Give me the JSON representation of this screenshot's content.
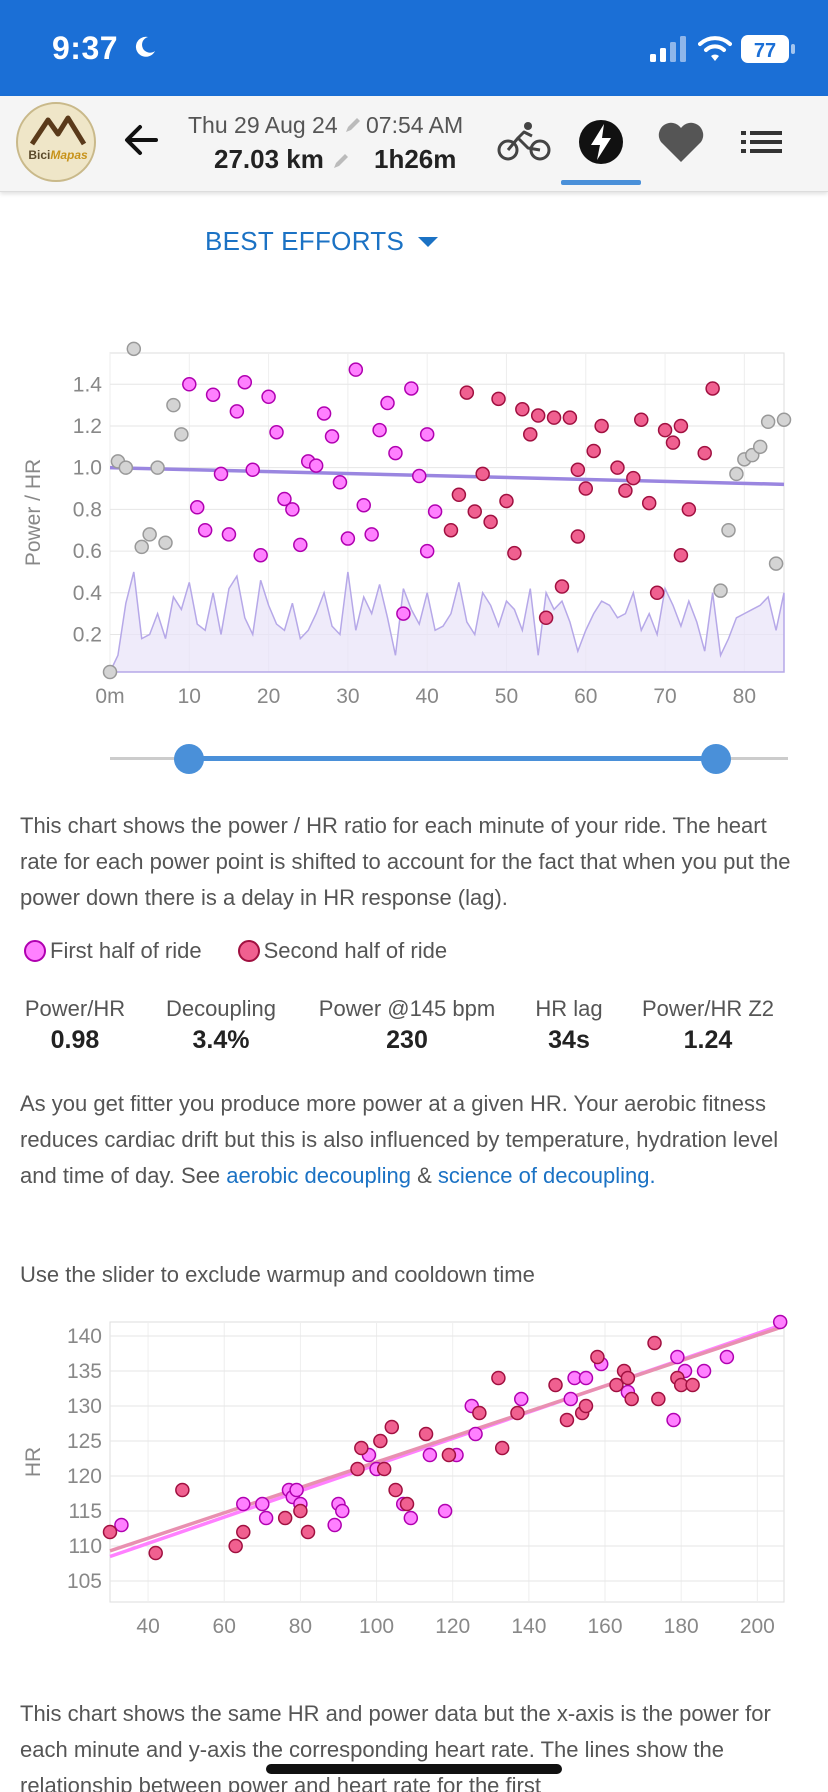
{
  "status_bar": {
    "time": "9:37",
    "battery": "77"
  },
  "header": {
    "logo_text_a": "Bici",
    "logo_text_b": "Mapas",
    "date": "Thu 29 Aug 24",
    "time": "07:54 AM",
    "distance": "27.03 km",
    "duration": "1h26m",
    "tabs": [
      "bike-icon",
      "power-icon",
      "heart-icon",
      "list-icon"
    ],
    "active_tab": "power"
  },
  "best_efforts": {
    "label": "BEST EFFORTS"
  },
  "chart1_text": {
    "ylabel": "Power / HR",
    "yticks": [
      "1.4",
      "1.2",
      "1.0",
      "0.8",
      "0.6",
      "0.4",
      "0.2"
    ],
    "xticks": [
      "0m",
      "10",
      "20",
      "30",
      "40",
      "50",
      "60",
      "70",
      "80"
    ]
  },
  "slider": {
    "min": 0,
    "max": 85,
    "low": 10,
    "high": 76
  },
  "text": {
    "chart1_desc": "This chart shows the power / HR ratio for each minute of your ride. The heart rate for each power point is shifted to account for the fact that when you put the power down there is a delay in HR response (lag).",
    "fitness_a": "As you get fitter you produce more power at a given HR. Your aerobic fitness reduces cardiac drift but this is also influenced by temperature, hydration level and time of day. See ",
    "link_aerobic": "aerobic decoupling",
    "amp": " & ",
    "link_science": "science of decoupling",
    "period": ".",
    "slider_hint": "Use the slider to exclude warmup and cooldown time",
    "chart2_desc": "This chart shows the same HR and power data but the x-axis is the power for each minute and y-axis the corresponding heart rate. The lines show the relationship between power and heart rate for the first"
  },
  "legend": {
    "first": "First half of ride",
    "second": "Second half of ride"
  },
  "stats": [
    {
      "label": "Power/HR",
      "value": "0.98"
    },
    {
      "label": "Decoupling",
      "value": "3.4%"
    },
    {
      "label": "Power @145 bpm",
      "value": "230"
    },
    {
      "label": "HR lag",
      "value": "34s"
    },
    {
      "label": "Power/HR Z2",
      "value": "1.24"
    }
  ],
  "colors": {
    "first_half": "#ff44ff",
    "second_half": "#e8306a",
    "excluded": "#bbbbbb",
    "trend": "#9a86e0",
    "accent": "#1b6fd6"
  },
  "chart_data": [
    {
      "type": "scatter",
      "xlabel": "",
      "ylabel": "Power / HR",
      "xlim": [
        0,
        85
      ],
      "ylim": [
        0.02,
        1.55
      ],
      "x_ticks": [
        0,
        10,
        20,
        30,
        40,
        50,
        60,
        70,
        80
      ],
      "y_ticks": [
        0.2,
        0.4,
        0.6,
        0.8,
        1.0,
        1.2,
        1.4
      ],
      "grid": true,
      "trend_line": [
        [
          0,
          1.0
        ],
        [
          85,
          0.92
        ]
      ],
      "background_area": {
        "x": [
          0,
          1,
          2,
          3,
          4,
          5,
          6,
          7,
          8,
          9,
          10,
          11,
          12,
          13,
          14,
          15,
          16,
          17,
          18,
          19,
          20,
          21,
          22,
          23,
          24,
          25,
          26,
          27,
          28,
          29,
          30,
          31,
          32,
          33,
          34,
          35,
          36,
          37,
          38,
          39,
          40,
          41,
          42,
          43,
          44,
          45,
          46,
          47,
          48,
          49,
          50,
          51,
          52,
          53,
          54,
          55,
          56,
          57,
          58,
          59,
          60,
          61,
          62,
          63,
          64,
          65,
          66,
          67,
          68,
          69,
          70,
          71,
          72,
          73,
          74,
          75,
          76,
          77,
          78,
          79,
          80,
          81,
          82,
          83,
          84,
          85
        ],
        "y": [
          0.02,
          0.1,
          0.35,
          0.5,
          0.18,
          0.2,
          0.3,
          0.18,
          0.38,
          0.32,
          0.45,
          0.25,
          0.22,
          0.4,
          0.2,
          0.42,
          0.48,
          0.28,
          0.2,
          0.46,
          0.34,
          0.25,
          0.22,
          0.35,
          0.18,
          0.22,
          0.3,
          0.4,
          0.24,
          0.2,
          0.5,
          0.22,
          0.38,
          0.3,
          0.44,
          0.28,
          0.1,
          0.42,
          0.32,
          0.25,
          0.4,
          0.22,
          0.24,
          0.3,
          0.45,
          0.26,
          0.2,
          0.4,
          0.34,
          0.24,
          0.36,
          0.32,
          0.22,
          0.42,
          0.1,
          0.4,
          0.32,
          0.36,
          0.26,
          0.12,
          0.22,
          0.3,
          0.36,
          0.34,
          0.28,
          0.3,
          0.4,
          0.22,
          0.3,
          0.2,
          0.42,
          0.34,
          0.24,
          0.36,
          0.26,
          0.12,
          0.4,
          0.1,
          0.18,
          0.28,
          0.3,
          0.32,
          0.34,
          0.38,
          0.22,
          0.4
        ]
      },
      "series": [
        {
          "name": "First half of ride",
          "points": [
            [
              10,
              1.4
            ],
            [
              13,
              1.35
            ],
            [
              17,
              1.41
            ],
            [
              20,
              1.34
            ],
            [
              16,
              1.27
            ],
            [
              27,
              1.26
            ],
            [
              31,
              1.47
            ],
            [
              35,
              1.31
            ],
            [
              38,
              1.38
            ],
            [
              21,
              1.17
            ],
            [
              28,
              1.15
            ],
            [
              34,
              1.18
            ],
            [
              40,
              1.16
            ],
            [
              36,
              1.07
            ],
            [
              18,
              0.99
            ],
            [
              14,
              0.97
            ],
            [
              25,
              1.03
            ],
            [
              26,
              1.01
            ],
            [
              29,
              0.93
            ],
            [
              39,
              0.96
            ],
            [
              11,
              0.81
            ],
            [
              22,
              0.85
            ],
            [
              23,
              0.8
            ],
            [
              32,
              0.82
            ],
            [
              41,
              0.79
            ],
            [
              12,
              0.7
            ],
            [
              15,
              0.68
            ],
            [
              30,
              0.66
            ],
            [
              33,
              0.68
            ],
            [
              19,
              0.58
            ],
            [
              24,
              0.63
            ],
            [
              40,
              0.6
            ],
            [
              37,
              0.3
            ]
          ]
        },
        {
          "name": "Second half of ride",
          "points": [
            [
              45,
              1.36
            ],
            [
              49,
              1.33
            ],
            [
              52,
              1.28
            ],
            [
              54,
              1.25
            ],
            [
              56,
              1.24
            ],
            [
              58,
              1.24
            ],
            [
              53,
              1.16
            ],
            [
              67,
              1.23
            ],
            [
              76,
              1.38
            ],
            [
              62,
              1.2
            ],
            [
              70,
              1.18
            ],
            [
              71,
              1.12
            ],
            [
              72,
              1.2
            ],
            [
              61,
              1.08
            ],
            [
              64,
              1.0
            ],
            [
              66,
              0.95
            ],
            [
              65,
              0.89
            ],
            [
              75,
              1.07
            ],
            [
              59,
              0.99
            ],
            [
              47,
              0.97
            ],
            [
              44,
              0.87
            ],
            [
              46,
              0.79
            ],
            [
              48,
              0.74
            ],
            [
              50,
              0.84
            ],
            [
              43,
              0.7
            ],
            [
              60,
              0.9
            ],
            [
              68,
              0.83
            ],
            [
              73,
              0.8
            ],
            [
              59,
              0.67
            ],
            [
              51,
              0.59
            ],
            [
              72,
              0.58
            ],
            [
              57,
              0.43
            ],
            [
              69,
              0.4
            ],
            [
              55,
              0.28
            ]
          ]
        },
        {
          "name": "excluded",
          "points": [
            [
              0,
              0.02
            ],
            [
              1,
              1.03
            ],
            [
              2,
              1.0
            ],
            [
              3,
              1.57
            ],
            [
              4,
              0.62
            ],
            [
              5,
              0.68
            ],
            [
              6,
              1.0
            ],
            [
              7,
              0.64
            ],
            [
              8,
              1.3
            ],
            [
              9,
              1.16
            ],
            [
              78,
              0.7
            ],
            [
              79,
              0.97
            ],
            [
              80,
              1.04
            ],
            [
              81,
              1.06
            ],
            [
              82,
              1.1
            ],
            [
              83,
              1.22
            ],
            [
              84,
              0.54
            ],
            [
              85,
              1.23
            ],
            [
              77,
              0.41
            ]
          ]
        }
      ]
    },
    {
      "type": "scatter",
      "xlabel": "",
      "ylabel": "HR",
      "xlim": [
        30,
        207
      ],
      "ylim": [
        102,
        142
      ],
      "x_ticks": [
        40,
        60,
        80,
        100,
        120,
        140,
        160,
        180,
        200
      ],
      "y_ticks": [
        105,
        110,
        115,
        120,
        125,
        130,
        135,
        140
      ],
      "grid": true,
      "trend_lines": [
        {
          "series": "First half of ride",
          "points": [
            [
              30,
              108.5
            ],
            [
              206,
              141.5
            ]
          ]
        },
        {
          "series": "Second half of ride",
          "points": [
            [
              30,
              109.3
            ],
            [
              206,
              141.2
            ]
          ]
        }
      ],
      "series": [
        {
          "name": "First half of ride",
          "points": [
            [
              33,
              113
            ],
            [
              65,
              116
            ],
            [
              70,
              116
            ],
            [
              71,
              114
            ],
            [
              77,
              118
            ],
            [
              78,
              117
            ],
            [
              79,
              118
            ],
            [
              80,
              116
            ],
            [
              89,
              113
            ],
            [
              90,
              116
            ],
            [
              91,
              115
            ],
            [
              98,
              123
            ],
            [
              100,
              121
            ],
            [
              107,
              116
            ],
            [
              109,
              114
            ],
            [
              114,
              123
            ],
            [
              118,
              115
            ],
            [
              121,
              123
            ],
            [
              125,
              130
            ],
            [
              126,
              126
            ],
            [
              138,
              131
            ],
            [
              151,
              131
            ],
            [
              152,
              134
            ],
            [
              155,
              134
            ],
            [
              159,
              136
            ],
            [
              166,
              132
            ],
            [
              178,
              128
            ],
            [
              179,
              137
            ],
            [
              181,
              135
            ],
            [
              186,
              135
            ],
            [
              192,
              137
            ],
            [
              206,
              142
            ]
          ]
        },
        {
          "name": "Second half of ride",
          "points": [
            [
              30,
              112
            ],
            [
              42,
              109
            ],
            [
              49,
              118
            ],
            [
              63,
              110
            ],
            [
              65,
              112
            ],
            [
              76,
              114
            ],
            [
              80,
              115
            ],
            [
              82,
              112
            ],
            [
              95,
              121
            ],
            [
              96,
              124
            ],
            [
              101,
              125
            ],
            [
              102,
              121
            ],
            [
              104,
              127
            ],
            [
              105,
              118
            ],
            [
              108,
              116
            ],
            [
              113,
              126
            ],
            [
              119,
              123
            ],
            [
              127,
              129
            ],
            [
              132,
              134
            ],
            [
              133,
              124
            ],
            [
              137,
              129
            ],
            [
              147,
              133
            ],
            [
              150,
              128
            ],
            [
              154,
              129
            ],
            [
              155,
              130
            ],
            [
              158,
              137
            ],
            [
              163,
              133
            ],
            [
              165,
              135
            ],
            [
              166,
              134
            ],
            [
              167,
              131
            ],
            [
              173,
              139
            ],
            [
              174,
              131
            ],
            [
              179,
              134
            ],
            [
              180,
              133
            ],
            [
              183,
              133
            ]
          ]
        }
      ]
    }
  ]
}
